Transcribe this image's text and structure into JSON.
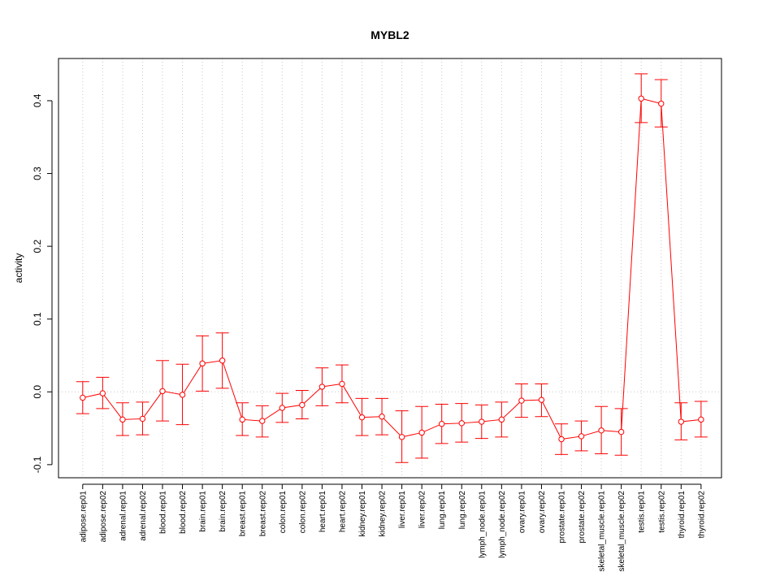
{
  "chart_data": {
    "type": "line",
    "title": "MYBL2",
    "xlabel": "",
    "ylabel": "activity",
    "ylim": [
      -0.118,
      0.458
    ],
    "yticks": [
      -0.1,
      0.0,
      0.1,
      0.2,
      0.3,
      0.4
    ],
    "ytick_labels": [
      "-0.1",
      "0.0",
      "0.1",
      "0.2",
      "0.3",
      "0.4"
    ],
    "grid": true,
    "series_color": "#ff0000",
    "grid_color": "#c8c8c8",
    "categories": [
      "adipose.rep01",
      "adipose.rep02",
      "adrenal.rep01",
      "adrenal.rep02",
      "blood.rep01",
      "blood.rep02",
      "brain.rep01",
      "brain.rep02",
      "breast.rep01",
      "breast.rep02",
      "colon.rep01",
      "colon.rep02",
      "heart.rep01",
      "heart.rep02",
      "kidney.rep01",
      "kidney.rep02",
      "liver.rep01",
      "liver.rep02",
      "lung.rep01",
      "lung.rep02",
      "lymph_node.rep01",
      "lymph_node.rep02",
      "ovary.rep01",
      "ovary.rep02",
      "prostate.rep01",
      "prostate.rep02",
      "skeletal_muscle.rep01",
      "skeletal_muscle.rep02",
      "testis.rep01",
      "testis.rep02",
      "thyroid.rep01",
      "thyroid.rep02"
    ],
    "values": [
      -0.008,
      -0.002,
      -0.038,
      -0.037,
      0.001,
      -0.004,
      0.039,
      0.043,
      -0.038,
      -0.04,
      -0.022,
      -0.018,
      0.007,
      0.011,
      -0.035,
      -0.034,
      -0.062,
      -0.056,
      -0.044,
      -0.043,
      -0.041,
      -0.038,
      -0.012,
      -0.011,
      -0.065,
      -0.061,
      -0.053,
      -0.055,
      0.403,
      0.396,
      -0.041,
      -0.038
    ],
    "upper": [
      0.014,
      0.02,
      -0.015,
      -0.014,
      0.043,
      0.038,
      0.077,
      0.081,
      -0.015,
      -0.019,
      -0.002,
      0.002,
      0.033,
      0.037,
      -0.009,
      -0.009,
      -0.026,
      -0.02,
      -0.017,
      -0.016,
      -0.018,
      -0.014,
      0.011,
      0.011,
      -0.044,
      -0.04,
      -0.02,
      -0.023,
      0.437,
      0.429,
      -0.015,
      -0.013
    ],
    "lower": [
      -0.03,
      -0.023,
      -0.06,
      -0.059,
      -0.04,
      -0.045,
      0.001,
      0.005,
      -0.06,
      -0.062,
      -0.042,
      -0.037,
      -0.019,
      -0.015,
      -0.06,
      -0.059,
      -0.097,
      -0.091,
      -0.071,
      -0.069,
      -0.064,
      -0.062,
      -0.035,
      -0.034,
      -0.086,
      -0.081,
      -0.085,
      -0.087,
      0.37,
      0.364,
      -0.066,
      -0.062
    ]
  }
}
